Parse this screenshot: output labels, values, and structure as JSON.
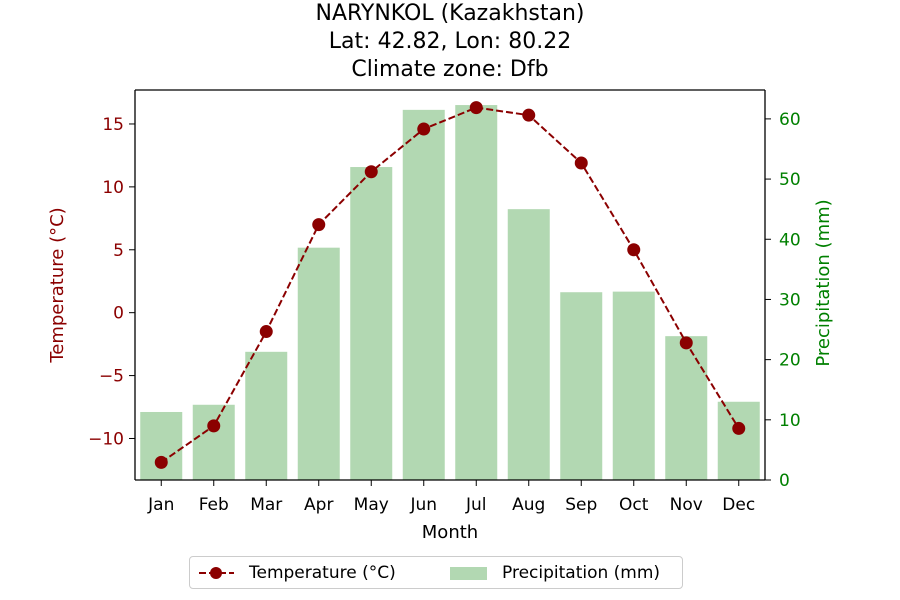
{
  "title": {
    "line1": "NARYNKOL (Kazakhstan)",
    "line2": "Lat: 42.82, Lon: 80.22",
    "line3": "Climate zone: Dfb"
  },
  "colors": {
    "temperature": "#8b0000",
    "precipitation": "#b2d8b2",
    "precip_axis": "#008000"
  },
  "legend": {
    "temperature_label": "Temperature (°C)",
    "precipitation_label": "Precipitation (mm)"
  },
  "chart_data": {
    "type": "bar",
    "categories": [
      "Jan",
      "Feb",
      "Mar",
      "Apr",
      "May",
      "Jun",
      "Jul",
      "Aug",
      "Sep",
      "Oct",
      "Nov",
      "Dec"
    ],
    "xlabel": "Month",
    "y_left": {
      "label": "Temperature (°C)",
      "lim": [
        -13.3,
        17.7
      ],
      "ticks": [
        -10,
        -5,
        0,
        5,
        10,
        15
      ],
      "tick_labels": [
        "−10",
        "−5",
        "0",
        "5",
        "10",
        "15"
      ]
    },
    "y_right": {
      "label": "Precipitation (mm)",
      "lim": [
        0,
        64.8
      ],
      "ticks": [
        0,
        10,
        20,
        30,
        40,
        50,
        60
      ],
      "tick_labels": [
        "0",
        "10",
        "20",
        "30",
        "40",
        "50",
        "60"
      ]
    },
    "series": [
      {
        "name": "Temperature (°C)",
        "type": "line",
        "axis": "left",
        "values": [
          -11.9,
          -9.0,
          -1.5,
          7.0,
          11.2,
          14.6,
          16.3,
          15.7,
          11.9,
          5.0,
          -2.4,
          -9.2
        ]
      },
      {
        "name": "Precipitation (mm)",
        "type": "bar",
        "axis": "right",
        "values": [
          11.3,
          12.5,
          21.3,
          38.6,
          52.0,
          61.5,
          62.3,
          45.0,
          31.2,
          31.3,
          23.9,
          13.0
        ]
      }
    ],
    "grid": false,
    "legend_position": "bottom-center"
  }
}
